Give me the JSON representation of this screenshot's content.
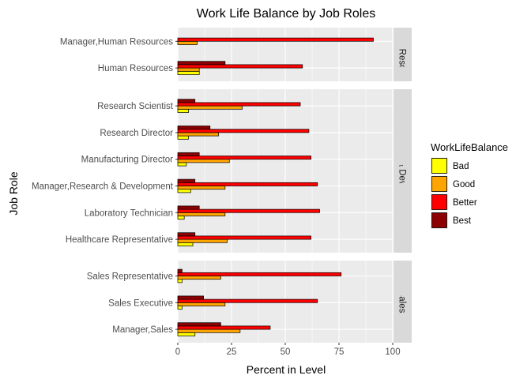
{
  "chart_data": {
    "type": "bar",
    "orientation": "horizontal",
    "title": "Work Life Balance by Job Roles",
    "xlabel": "Percent in Level",
    "ylabel": "Job Role",
    "xlim": [
      0,
      100
    ],
    "x_ticks": [
      0,
      25,
      50,
      75,
      100
    ],
    "grid": true,
    "legend": {
      "title": "WorkLifeBalance",
      "position": "right",
      "entries": [
        {
          "name": "Bad",
          "color": "#FFFF00"
        },
        {
          "name": "Good",
          "color": "#FFA500"
        },
        {
          "name": "Better",
          "color": "#FF0000"
        },
        {
          "name": "Best",
          "color": "#8B0000"
        }
      ]
    },
    "panel_background": "#EBEBEB",
    "strip_background": "#D9D9D9",
    "facets": [
      {
        "label": "Human Resources",
        "categories": [
          "Manager,Human Resources",
          "Human Resources"
        ],
        "values": {
          "Manager,Human Resources": {
            "Bad": 0,
            "Good": 9,
            "Better": 91,
            "Best": 0
          },
          "Human Resources": {
            "Bad": 10,
            "Good": 10,
            "Better": 58,
            "Best": 22
          }
        }
      },
      {
        "label": "Research & Development",
        "categories": [
          "Research Scientist",
          "Research Director",
          "Manufacturing Director",
          "Manager,Research & Development",
          "Laboratory Technician",
          "Healthcare Representative"
        ],
        "values": {
          "Research Scientist": {
            "Bad": 5,
            "Good": 30,
            "Better": 57,
            "Best": 8
          },
          "Research Director": {
            "Bad": 5,
            "Good": 19,
            "Better": 61,
            "Best": 15
          },
          "Manufacturing Director": {
            "Bad": 4,
            "Good": 24,
            "Better": 62,
            "Best": 10
          },
          "Manager,Research & Development": {
            "Bad": 6,
            "Good": 22,
            "Better": 65,
            "Best": 8
          },
          "Laboratory Technician": {
            "Bad": 3,
            "Good": 22,
            "Better": 66,
            "Best": 10
          },
          "Healthcare Representative": {
            "Bad": 7,
            "Good": 23,
            "Better": 62,
            "Best": 8
          }
        }
      },
      {
        "label": "Sales",
        "categories": [
          "Sales Representative",
          "Sales Executive",
          "Manager,Sales"
        ],
        "values": {
          "Sales Representative": {
            "Bad": 2,
            "Good": 20,
            "Better": 76,
            "Best": 2
          },
          "Sales Executive": {
            "Bad": 2,
            "Good": 22,
            "Better": 65,
            "Best": 12
          },
          "Manager,Sales": {
            "Bad": 8,
            "Good": 29,
            "Better": 43,
            "Best": 20
          }
        }
      }
    ]
  }
}
